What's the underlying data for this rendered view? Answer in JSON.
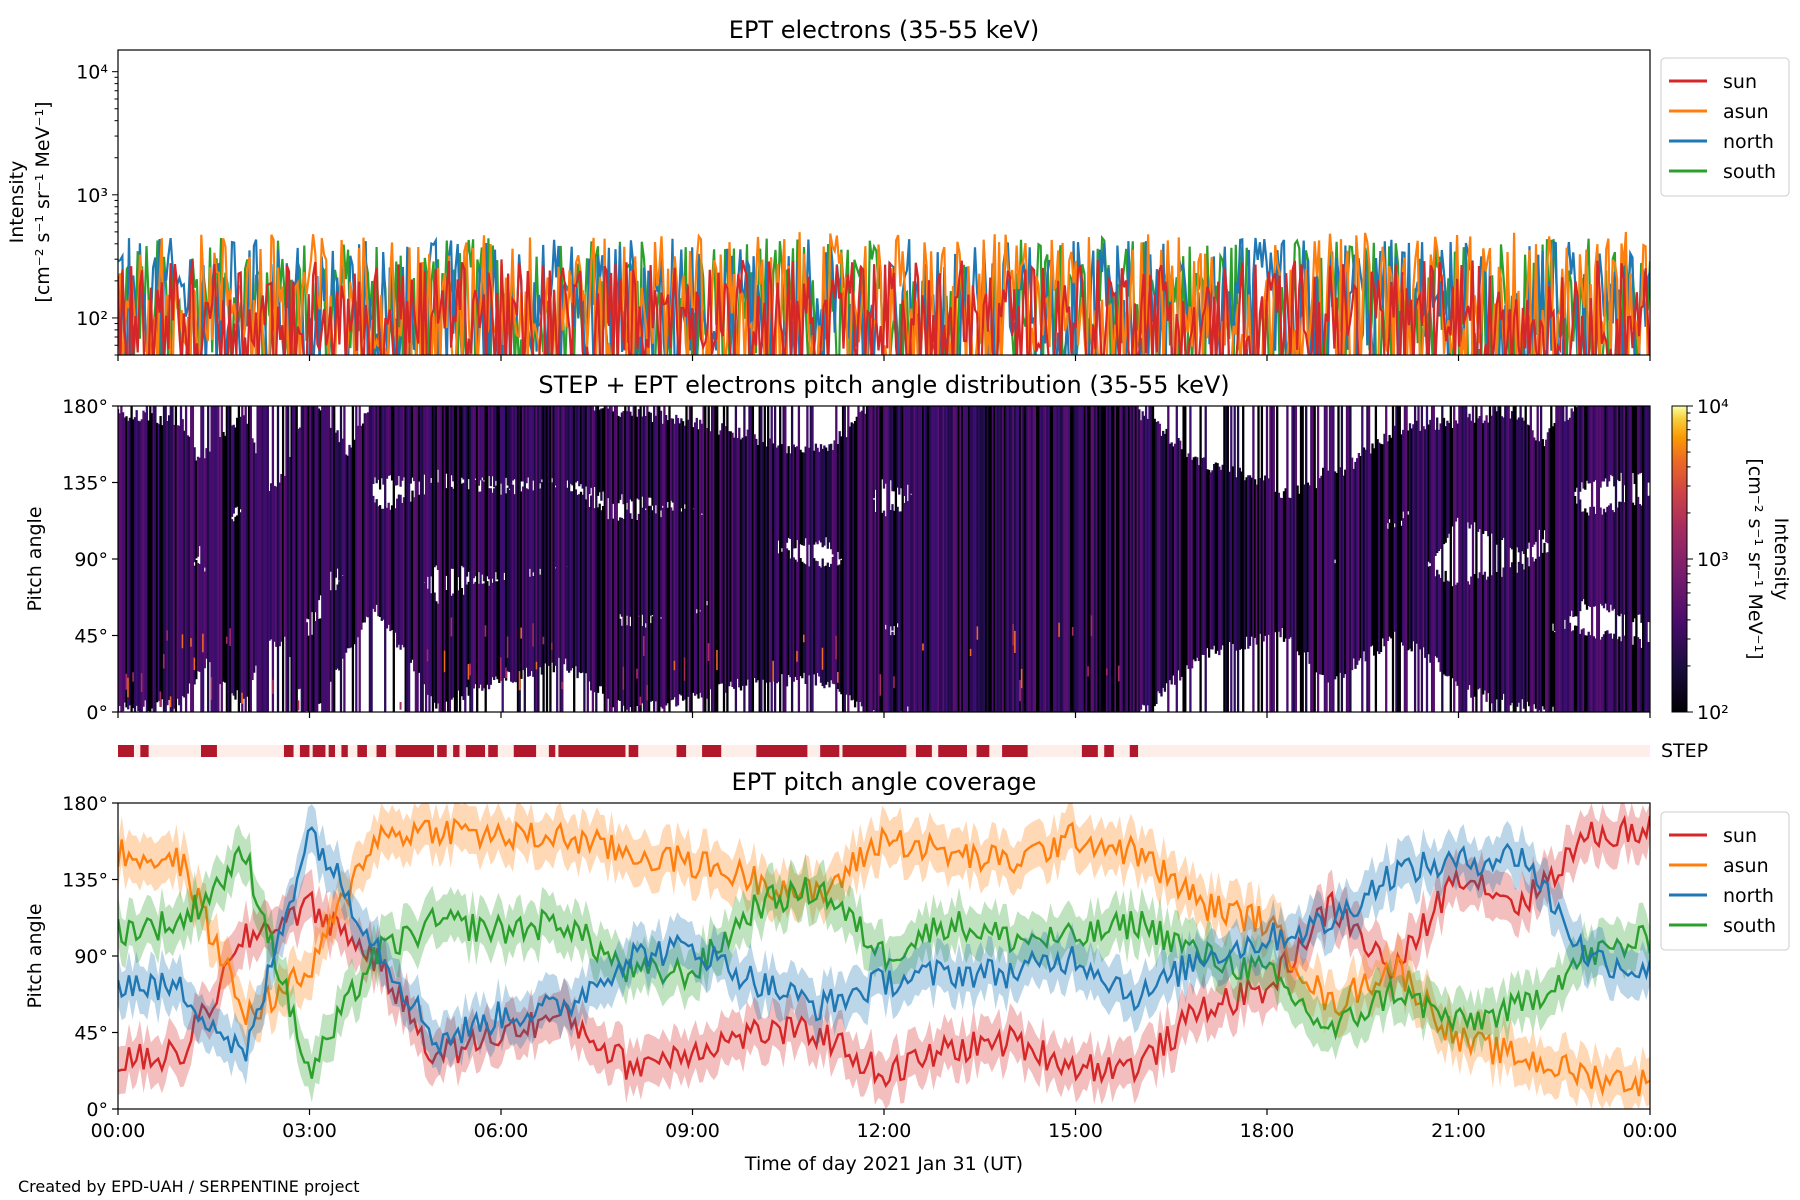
{
  "chart_data": [
    {
      "type": "line",
      "title": "EPT electrons (35-55 keV)",
      "ylabel": "Intensity",
      "yunit_label": "[cm⁻² s⁻¹ sr⁻¹ MeV⁻¹]",
      "yscale": "log",
      "ylim": [
        50,
        15000
      ],
      "yticks": [
        100,
        1000,
        10000
      ],
      "ytick_labels": [
        "10²",
        "10³",
        "10⁴"
      ],
      "xlim_hours": [
        0,
        24
      ],
      "legend": "right-outside-top",
      "series": [
        {
          "name": "sun",
          "color": "#d62728",
          "typical_range": [
            50,
            300
          ]
        },
        {
          "name": "asun",
          "color": "#ff7f0e",
          "typical_range": [
            50,
            500
          ]
        },
        {
          "name": "north",
          "color": "#1f77b4",
          "typical_range": [
            50,
            450
          ]
        },
        {
          "name": "south",
          "color": "#2ca02c",
          "typical_range": [
            50,
            450
          ]
        }
      ]
    },
    {
      "type": "heatmap",
      "title": "STEP + EPT electrons pitch angle distribution (35-55 keV)",
      "ylabel": "Pitch angle",
      "ylim": [
        0,
        180
      ],
      "yticks": [
        0,
        45,
        90,
        135,
        180
      ],
      "ytick_labels": [
        "0°",
        "45°",
        "90°",
        "135°",
        "180°"
      ],
      "xlim_hours": [
        0,
        24
      ],
      "colorbar": {
        "label": "Intensity",
        "unit_label": "[cm⁻² s⁻¹ sr⁻¹ MeV⁻¹]",
        "scale": "log",
        "range": [
          100,
          10000
        ],
        "ticks": [
          "10²",
          "10³",
          "10⁴"
        ],
        "colormap": "inferno"
      }
    },
    {
      "type": "bar",
      "label": "STEP",
      "color": "#b2182b",
      "background": "#fdeee9",
      "xlim_hours": [
        0,
        24
      ],
      "coverage_intervals_hours": [
        [
          0.0,
          0.25
        ],
        [
          0.35,
          0.48
        ],
        [
          1.3,
          1.55
        ],
        [
          2.6,
          2.75
        ],
        [
          2.85,
          3.0
        ],
        [
          3.05,
          3.25
        ],
        [
          3.3,
          3.4
        ],
        [
          3.5,
          3.6
        ],
        [
          3.75,
          3.9
        ],
        [
          4.05,
          4.2
        ],
        [
          4.35,
          4.95
        ],
        [
          5.0,
          5.15
        ],
        [
          5.25,
          5.35
        ],
        [
          5.45,
          5.75
        ],
        [
          5.8,
          5.95
        ],
        [
          6.2,
          6.55
        ],
        [
          6.75,
          6.85
        ],
        [
          6.95,
          7.05
        ],
        [
          6.9,
          7.95
        ],
        [
          8.0,
          8.15
        ],
        [
          8.75,
          8.9
        ],
        [
          9.15,
          9.45
        ],
        [
          10.0,
          10.8
        ],
        [
          11.0,
          11.3
        ],
        [
          11.35,
          12.35
        ],
        [
          12.5,
          12.75
        ],
        [
          12.85,
          13.3
        ],
        [
          13.45,
          13.65
        ],
        [
          13.85,
          14.25
        ],
        [
          15.1,
          15.35
        ],
        [
          15.45,
          15.6
        ],
        [
          15.85,
          15.98
        ]
      ]
    },
    {
      "type": "line",
      "title": "EPT pitch angle coverage",
      "ylabel": "Pitch angle",
      "xlabel": "Time of day 2021 Jan 31 (UT)",
      "ylim": [
        0,
        180
      ],
      "yticks": [
        0,
        45,
        90,
        135,
        180
      ],
      "ytick_labels": [
        "0°",
        "45°",
        "90°",
        "135°",
        "180°"
      ],
      "xlim_hours": [
        0,
        24
      ],
      "xticks_hours": [
        0,
        3,
        6,
        9,
        12,
        15,
        18,
        21,
        24
      ],
      "xtick_labels": [
        "00:00",
        "03:00",
        "06:00",
        "09:00",
        "12:00",
        "15:00",
        "18:00",
        "21:00",
        "00:00"
      ],
      "legend": "right-outside-top",
      "series": [
        {
          "name": "sun",
          "color": "#d62728",
          "x": [
            0,
            1,
            2,
            3,
            4,
            5,
            6,
            7,
            8,
            9,
            10,
            11,
            12,
            13,
            14,
            15,
            16,
            17,
            18,
            19,
            20,
            21,
            22,
            23,
            24
          ],
          "y": [
            28,
            32,
            100,
            120,
            90,
            30,
            45,
            55,
            25,
            35,
            45,
            45,
            20,
            35,
            40,
            25,
            25,
            60,
            70,
            120,
            80,
            140,
            120,
            160,
            165
          ]
        },
        {
          "name": "asun",
          "color": "#ff7f0e",
          "x": [
            0,
            1,
            2,
            3,
            4,
            5,
            6,
            7,
            8,
            9,
            10,
            11,
            12,
            13,
            14,
            15,
            16,
            17,
            18,
            19,
            20,
            21,
            22,
            23,
            24
          ],
          "y": [
            150,
            145,
            55,
            80,
            160,
            165,
            160,
            160,
            150,
            145,
            135,
            125,
            160,
            150,
            145,
            160,
            150,
            120,
            110,
            60,
            85,
            40,
            30,
            20,
            15
          ]
        },
        {
          "name": "north",
          "color": "#1f77b4",
          "x": [
            0,
            1,
            2,
            3,
            4,
            5,
            6,
            7,
            8,
            9,
            10,
            11,
            12,
            13,
            14,
            15,
            16,
            17,
            18,
            19,
            20,
            21,
            22,
            23,
            24
          ],
          "y": [
            75,
            70,
            30,
            165,
            100,
            40,
            55,
            60,
            90,
            95,
            75,
            60,
            75,
            80,
            80,
            90,
            65,
            90,
            100,
            110,
            140,
            145,
            150,
            90,
            80
          ]
        },
        {
          "name": "south",
          "color": "#2ca02c",
          "x": [
            0,
            1,
            2,
            3,
            4,
            5,
            6,
            7,
            8,
            9,
            10,
            11,
            12,
            13,
            14,
            15,
            16,
            17,
            18,
            19,
            20,
            21,
            22,
            23,
            24
          ],
          "y": [
            105,
            110,
            150,
            20,
            90,
            110,
            105,
            110,
            80,
            80,
            120,
            130,
            90,
            110,
            100,
            100,
            110,
            90,
            80,
            45,
            70,
            50,
            60,
            90,
            100
          ]
        }
      ]
    }
  ],
  "footer": {
    "credit": "Created by EPD-UAH / SERPENTINE project"
  }
}
